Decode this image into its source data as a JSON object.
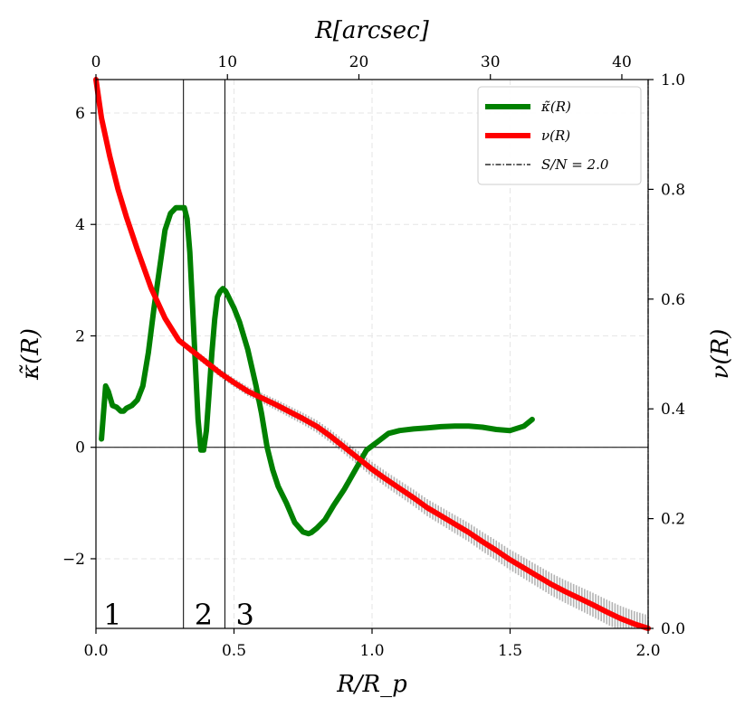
{
  "chart_data": {
    "type": "line",
    "top_axis": {
      "label": "R[arcsec]",
      "range": [
        0,
        42
      ],
      "ticks": [
        0,
        10,
        20,
        30,
        40
      ]
    },
    "bottom_axis": {
      "label": "R/R_p",
      "range": [
        0.0,
        2.0
      ],
      "ticks": [
        0.0,
        0.5,
        1.0,
        1.5,
        2.0
      ],
      "tick_labels": [
        "0.0",
        "0.5",
        "1.0",
        "1.5",
        "2.0"
      ]
    },
    "left_axis": {
      "label": "κ̃(R)",
      "range": [
        -3.25,
        6.6
      ],
      "ticks": [
        -2,
        0,
        2,
        4,
        6
      ],
      "tick_labels": [
        "−2",
        "0",
        "2",
        "4",
        "6"
      ]
    },
    "right_axis": {
      "label": "ν(R)",
      "range": [
        0.0,
        1.0
      ],
      "ticks": [
        0.0,
        0.2,
        0.4,
        0.6,
        0.8,
        1.0
      ],
      "tick_labels": [
        "0.0",
        "0.2",
        "0.4",
        "0.6",
        "0.8",
        "1.0"
      ]
    },
    "grid": true,
    "legend": {
      "placement": "top-right",
      "entries": [
        {
          "label": "κ̃(R)",
          "color": "#008000",
          "style": "solid"
        },
        {
          "label": "ν(R)",
          "color": "#ff0000",
          "style": "solid"
        },
        {
          "label": "S/N = 2.0",
          "color": "#000000",
          "style": "dashdot"
        }
      ]
    },
    "series": [
      {
        "name": "kappa",
        "axis": "left",
        "color": "#008000",
        "x": [
          0.02,
          0.035,
          0.045,
          0.06,
          0.075,
          0.09,
          0.1,
          0.11,
          0.13,
          0.15,
          0.17,
          0.19,
          0.21,
          0.23,
          0.25,
          0.27,
          0.29,
          0.31,
          0.32,
          0.33,
          0.34,
          0.35,
          0.36,
          0.37,
          0.38,
          0.39,
          0.4,
          0.41,
          0.42,
          0.43,
          0.44,
          0.45,
          0.46,
          0.47,
          0.48,
          0.49,
          0.5,
          0.52,
          0.55,
          0.58,
          0.6,
          0.62,
          0.64,
          0.66,
          0.69,
          0.72,
          0.75,
          0.77,
          0.78,
          0.8,
          0.83,
          0.86,
          0.9,
          0.94,
          0.98,
          1.02,
          1.06,
          1.1,
          1.15,
          1.2,
          1.25,
          1.3,
          1.35,
          1.4,
          1.45,
          1.5,
          1.55,
          1.58
        ],
        "y": [
          0.15,
          1.1,
          1.0,
          0.75,
          0.72,
          0.65,
          0.65,
          0.7,
          0.75,
          0.85,
          1.1,
          1.7,
          2.5,
          3.2,
          3.9,
          4.2,
          4.3,
          4.3,
          4.3,
          4.1,
          3.5,
          2.5,
          1.5,
          0.5,
          -0.05,
          -0.05,
          0.3,
          1.0,
          1.7,
          2.3,
          2.7,
          2.8,
          2.85,
          2.8,
          2.7,
          2.6,
          2.5,
          2.25,
          1.75,
          1.1,
          0.6,
          0.0,
          -0.4,
          -0.7,
          -1.0,
          -1.35,
          -1.52,
          -1.55,
          -1.53,
          -1.45,
          -1.3,
          -1.05,
          -0.75,
          -0.4,
          -0.05,
          0.1,
          0.25,
          0.3,
          0.33,
          0.35,
          0.37,
          0.38,
          0.38,
          0.36,
          0.32,
          0.3,
          0.38,
          0.5
        ]
      },
      {
        "name": "nu",
        "axis": "right",
        "color": "#ff0000",
        "x": [
          0.0,
          0.02,
          0.05,
          0.08,
          0.11,
          0.15,
          0.2,
          0.25,
          0.3,
          0.35,
          0.4,
          0.45,
          0.5,
          0.55,
          0.6,
          0.65,
          0.7,
          0.75,
          0.8,
          0.85,
          0.9,
          0.95,
          1.0,
          1.05,
          1.1,
          1.15,
          1.2,
          1.25,
          1.3,
          1.35,
          1.4,
          1.45,
          1.5,
          1.55,
          1.6,
          1.65,
          1.7,
          1.75,
          1.8,
          1.85,
          1.9,
          1.95,
          2.0
        ],
        "y": [
          1.0,
          0.93,
          0.86,
          0.8,
          0.75,
          0.69,
          0.62,
          0.565,
          0.525,
          0.505,
          0.485,
          0.465,
          0.448,
          0.432,
          0.42,
          0.408,
          0.395,
          0.382,
          0.368,
          0.35,
          0.33,
          0.31,
          0.29,
          0.272,
          0.255,
          0.238,
          0.22,
          0.205,
          0.19,
          0.175,
          0.158,
          0.142,
          0.125,
          0.11,
          0.095,
          0.08,
          0.067,
          0.055,
          0.043,
          0.03,
          0.018,
          0.008,
          0.0
        ]
      }
    ],
    "error_band": {
      "name": "nu uncertainty",
      "color": "#b3b3b3",
      "x_start": 0.3,
      "x_end": 2.0,
      "step": 0.01,
      "half_width_start": 0.006,
      "half_width_end": 0.024
    },
    "vertical_lines": [
      {
        "x": 0.317
      },
      {
        "x": 0.467
      },
      {
        "x": 2.0,
        "style": "dashdot",
        "note": "S/N = 2.0"
      }
    ],
    "horizontal_lines": [
      {
        "y": 0
      }
    ],
    "region_labels": [
      "1",
      "2",
      "3"
    ],
    "region_label_x": [
      0.06,
      0.39,
      0.54
    ]
  }
}
